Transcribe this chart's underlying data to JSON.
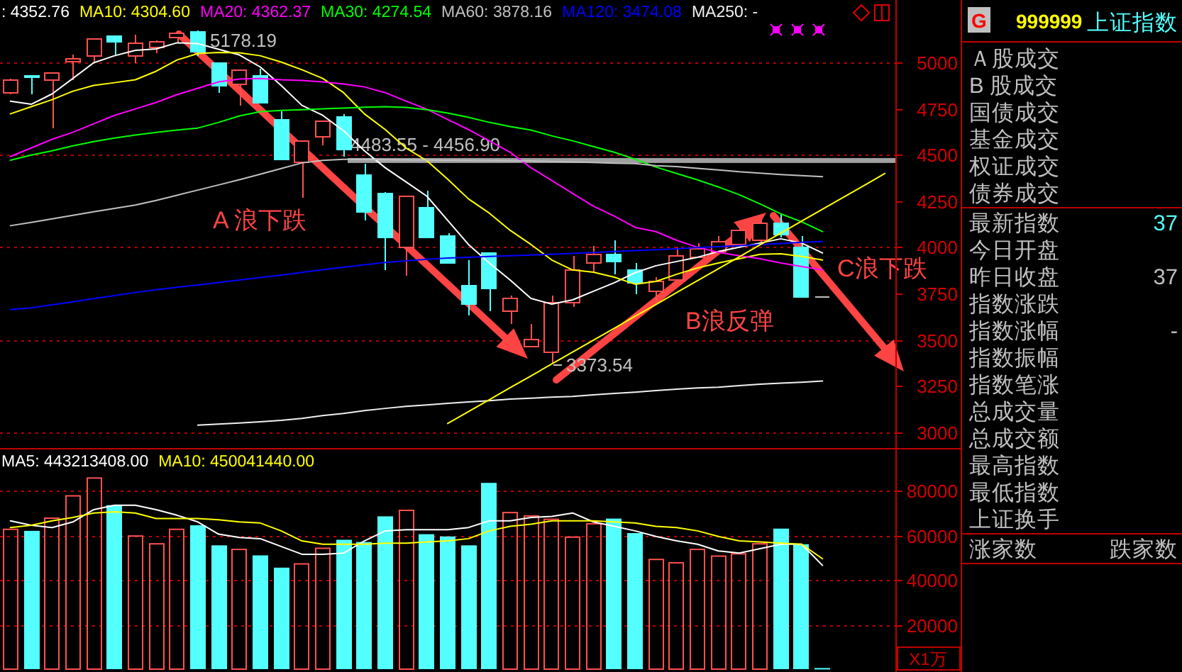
{
  "chart_data": [
    {
      "type": "candlestick",
      "categories": [
        null,
        null,
        null,
        null,
        null,
        null,
        null,
        null,
        null,
        null,
        null,
        null,
        null,
        null,
        null,
        null,
        null,
        null,
        null,
        null,
        null,
        null,
        null,
        null,
        null,
        null,
        null,
        null,
        null,
        null,
        null,
        null,
        null,
        null,
        null,
        null,
        null,
        null,
        null,
        null,
        null,
        null,
        null
      ],
      "ohlc": [
        [
          4838,
          4915,
          4830,
          4908
        ],
        [
          4931,
          4936,
          4833,
          4923
        ],
        [
          4910,
          4948,
          4652,
          4946
        ],
        [
          5010,
          5048,
          4908,
          5025
        ],
        [
          5038,
          5133,
          5005,
          5133
        ],
        [
          5146,
          5146,
          5044,
          5115
        ],
        [
          5044,
          5154,
          5005,
          5108
        ],
        [
          5090,
          5125,
          5052,
          5121
        ],
        [
          5138,
          5178.19,
          5108,
          5164
        ],
        [
          5170,
          5175,
          5038,
          5064
        ],
        [
          5005,
          5005,
          4844,
          4877
        ],
        [
          4885,
          4967,
          4775,
          4967
        ],
        [
          4936,
          4975,
          4787,
          4787
        ],
        [
          4692,
          4744,
          4479,
          4479
        ],
        [
          4467,
          4577,
          4275,
          4577
        ],
        [
          4600,
          4690,
          4556,
          4690
        ],
        [
          4710,
          4723,
          4492,
          4531
        ],
        [
          4398,
          4454,
          4146,
          4198
        ],
        [
          4292,
          4300,
          3882,
          4056
        ],
        [
          4005,
          4279,
          3852,
          4279
        ],
        [
          4218,
          4313,
          4056,
          4056
        ],
        [
          4062,
          4080,
          3921,
          3921
        ],
        [
          3792,
          3933,
          3633,
          3698
        ],
        [
          3975,
          3975,
          3659,
          3779
        ],
        [
          3654,
          3744,
          3587,
          3728
        ],
        [
          3467,
          3590,
          3467,
          3505
        ],
        [
          3433,
          3744,
          3373.54,
          3705
        ],
        [
          3702,
          3954,
          3680,
          3877
        ],
        [
          3921,
          4010,
          3864,
          3967
        ],
        [
          3962,
          4038,
          3856,
          3928
        ],
        [
          3877,
          3921,
          3748,
          3813
        ],
        [
          3762,
          3844,
          3705,
          3818
        ],
        [
          3825,
          4000,
          3825,
          3959
        ],
        [
          3946,
          4023,
          3946,
          3992
        ],
        [
          3979,
          4062,
          3979,
          4031
        ],
        [
          4018,
          4110,
          4000,
          4095
        ],
        [
          4044,
          4150,
          4030,
          4133
        ],
        [
          4133,
          4185,
          4060,
          4069
        ],
        [
          4000,
          4062,
          3731,
          3731
        ],
        [
          3731,
          3731,
          3731,
          3731
        ],
        null,
        null,
        null
      ],
      "colors": [
        "#ff5050",
        "#54ffff",
        "#ff5050",
        "#ff5050",
        "#ff5050",
        "#54ffff",
        "#ff5050",
        "#ff5050",
        "#ff5050",
        "#54ffff",
        "#54ffff",
        "#ff5050",
        "#54ffff",
        "#54ffff",
        "#ff5050",
        "#ff5050",
        "#54ffff",
        "#54ffff",
        "#54ffff",
        "#ff5050",
        "#54ffff",
        "#54ffff",
        "#54ffff",
        "#54ffff",
        "#ff5050",
        "#ff5050",
        "#ff5050",
        "#ff5050",
        "#ff5050",
        "#54ffff",
        "#54ffff",
        "#ff5050",
        "#ff5050",
        "#ff5050",
        "#ff5050",
        "#ff5050",
        "#ff5050",
        "#54ffff",
        "#54ffff",
        "#c0c0c0",
        null,
        null,
        null
      ],
      "series": [
        {
          "name": ": 4352.76",
          "type": "line",
          "color": "#ffffff",
          "values": [
            4792,
            4775,
            4831,
            4915,
            5000,
            5038,
            5067,
            5075,
            5108,
            5104,
            5073,
            5042,
            4977,
            4877,
            4769,
            4715,
            4631,
            4523,
            4431,
            4354,
            4277,
            4146,
            4015,
            3915,
            3823,
            3723,
            3692,
            3715,
            3762,
            3808,
            3862,
            3900,
            3923,
            3946,
            3977,
            4000,
            4023,
            4046,
            4023,
            3969,
            null,
            null,
            null
          ]
        },
        {
          "name": "MA10: 4304.60",
          "type": "line",
          "color": "#ffff00",
          "values": [
            4723,
            4762,
            4800,
            4846,
            4877,
            4892,
            4908,
            4954,
            5015,
            5050,
            5056,
            5054,
            5038,
            5004,
            4962,
            4915,
            4838,
            4723,
            4638,
            4538,
            4469,
            4369,
            4262,
            4185,
            4092,
            4015,
            3931,
            3877,
            3865,
            3838,
            3800,
            3815,
            3854,
            3888,
            3915,
            3938,
            3962,
            3965,
            3950,
            3931,
            null,
            null,
            null
          ]
        },
        {
          "name": "MA20: 4362.37",
          "type": "line",
          "color": "#ff00ff",
          "values": [
            4492,
            4538,
            4585,
            4623,
            4669,
            4715,
            4750,
            4785,
            4827,
            4862,
            4896,
            4912,
            4915,
            4908,
            4904,
            4896,
            4885,
            4869,
            4838,
            4792,
            4748,
            4692,
            4638,
            4577,
            4515,
            4431,
            4362,
            4292,
            4223,
            4169,
            4108,
            4085,
            4038,
            4000,
            3973,
            3954,
            3938,
            3915,
            3896,
            3877,
            null,
            null,
            null
          ]
        },
        {
          "name": "MA30: 4274.54",
          "type": "line",
          "color": "#00ff00",
          "values": [
            4472,
            4500,
            4523,
            4550,
            4573,
            4592,
            4608,
            4623,
            4635,
            4646,
            4677,
            4712,
            4735,
            4742,
            4746,
            4750,
            4754,
            4759,
            4762,
            4758,
            4746,
            4727,
            4704,
            4677,
            4654,
            4635,
            4604,
            4577,
            4546,
            4515,
            4477,
            4435,
            4400,
            4365,
            4327,
            4285,
            4235,
            4181,
            4138,
            4085,
            null,
            null,
            null
          ]
        },
        {
          "name": "MA60: 3878.16",
          "type": "line",
          "color": "#c0c0c0",
          "values": [
            4117,
            4135,
            4154,
            4173,
            4192,
            4211,
            4229,
            4254,
            4282,
            4310,
            4338,
            4366,
            4396,
            4427,
            4457,
            4471,
            4477,
            4477,
            4475,
            4474,
            4473,
            4472,
            4471,
            4470,
            4469,
            4468,
            4465,
            4462,
            4459,
            4456,
            4454,
            4442,
            4437,
            4428,
            4419,
            4409,
            4402,
            4394,
            4388,
            4383,
            null,
            null,
            null
          ]
        },
        {
          "name": "MA120: 3474.08",
          "type": "line",
          "color": "#0000ff",
          "values": [
            3662,
            3672,
            3688,
            3705,
            3722,
            3738,
            3755,
            3770,
            3783,
            3796,
            3809,
            3823,
            3836,
            3849,
            3864,
            3878,
            3892,
            3905,
            3918,
            3926,
            3935,
            3942,
            3946,
            3950,
            3954,
            3958,
            3962,
            3967,
            3972,
            3977,
            3982,
            3987,
            3992,
            3998,
            4003,
            4009,
            4015,
            4021,
            4027,
            4031,
            null,
            null,
            null
          ]
        },
        {
          "name": "MA250: -",
          "type": "line",
          "color": "#f0f0f0",
          "values": [
            null,
            null,
            null,
            null,
            null,
            null,
            null,
            null,
            null,
            3036,
            3042,
            3048,
            3054,
            3062,
            3073,
            3088,
            3100,
            3115,
            3127,
            3138,
            3146,
            3154,
            3162,
            3169,
            3177,
            3182,
            3188,
            3192,
            3200,
            3208,
            3215,
            3223,
            3231,
            3238,
            3242,
            3250,
            3258,
            3264,
            3269,
            3275,
            null,
            null,
            null
          ]
        },
        {
          "type": "line",
          "color": "#ffff00",
          "values": [
            null,
            null,
            null,
            null,
            null,
            null,
            null,
            null,
            null,
            null,
            null,
            null,
            null,
            null,
            null,
            null,
            null,
            null,
            null,
            null,
            null,
            3045,
            3110,
            3174,
            3239,
            3303,
            3368,
            3432,
            3497,
            3561,
            3626,
            3690,
            3755,
            3819,
            3884,
            3948,
            4013,
            4077,
            4142,
            4206,
            4271,
            4335,
            4400
          ]
        }
      ],
      "ylim": [
        2920,
        5340
      ],
      "yticks": [
        3000,
        3250,
        3500,
        3750,
        4000,
        4250,
        4500,
        4750,
        5000
      ],
      "tick_labels": "y",
      "legend": "top left",
      "ref_lines": [
        {
          "axis": "y",
          "value": 5000,
          "color": "#b40000",
          "line_style": "dotted"
        },
        {
          "axis": "y",
          "value": 4500,
          "color": "#b40000",
          "line_style": "dotted"
        },
        {
          "axis": "y",
          "value": 4000,
          "color": "#b40000",
          "line_style": "dotted"
        },
        {
          "axis": "y",
          "value": 3500,
          "color": "#b40000",
          "line_style": "dotted"
        },
        {
          "axis": "y",
          "value": 3000,
          "color": "#b40000",
          "line_style": "dotted"
        }
      ],
      "bands": [
        {
          "axis": "y",
          "from": 4456.9,
          "to": 4483.55,
          "label": "4483.55 - 4456.90",
          "color": "#a0a0a0"
        }
      ],
      "annotations": [
        "5178.19",
        "3373.54",
        "A 浪下跌",
        "B浪反弹",
        "C浪下跌"
      ]
    },
    {
      "type": "bar",
      "categories": [
        null,
        null,
        null,
        null,
        null,
        null,
        null,
        null,
        null,
        null,
        null,
        null,
        null,
        null,
        null,
        null,
        null,
        null,
        null,
        null,
        null,
        null,
        null,
        null,
        null,
        null,
        null,
        null,
        null,
        null,
        null,
        null,
        null,
        null,
        null,
        null,
        null,
        null,
        null,
        null,
        null,
        null,
        null
      ],
      "series": [
        {
          "colors": [
            "#ff5050",
            "#54ffff",
            "#ff5050",
            "#ff5050",
            "#ff5050",
            "#54ffff",
            "#ff5050",
            "#ff5050",
            "#ff5050",
            "#54ffff",
            "#54ffff",
            "#ff5050",
            "#54ffff",
            "#54ffff",
            "#ff5050",
            "#ff5050",
            "#54ffff",
            "#54ffff",
            "#54ffff",
            "#ff5050",
            "#54ffff",
            "#54ffff",
            "#54ffff",
            "#54ffff",
            "#ff5050",
            "#ff5050",
            "#ff5050",
            "#ff5050",
            "#ff5050",
            "#54ffff",
            "#54ffff",
            "#ff5050",
            "#ff5050",
            "#ff5050",
            "#ff5050",
            "#ff5050",
            "#ff5050",
            "#54ffff",
            "#54ffff",
            "#54ffff",
            null,
            null,
            null
          ],
          "values": [
            63000,
            62000,
            68000,
            78000,
            86000,
            73500,
            60000,
            56500,
            63000,
            64500,
            55500,
            54000,
            51000,
            45500,
            47500,
            54500,
            58000,
            57000,
            68500,
            71500,
            60500,
            59500,
            55500,
            83500,
            70500,
            69000,
            67500,
            59500,
            65500,
            67500,
            61000,
            49500,
            48000,
            54000,
            51000,
            52000,
            56500,
            63000,
            56000,
            500,
            null,
            null,
            null
          ]
        },
        {
          "name": "MA5: 443213408.00",
          "type": "line",
          "color": "#ffffff",
          "values": [
            66500,
            64500,
            63500,
            66000,
            71500,
            73500,
            73500,
            71500,
            69000,
            66000,
            60500,
            59000,
            58500,
            55000,
            51500,
            51500,
            52000,
            57500,
            62000,
            62500,
            62500,
            62500,
            63500,
            66500,
            66500,
            68000,
            68500,
            70000,
            66000,
            64000,
            62000,
            59500,
            57500,
            56000,
            53000,
            52000,
            54000,
            56000,
            56000,
            46500,
            null,
            null,
            null
          ]
        },
        {
          "name": "MA10: 450041440.00",
          "type": "line",
          "color": "#ffff00",
          "values": [
            63500,
            64500,
            66500,
            68000,
            70000,
            70500,
            70000,
            67500,
            67500,
            67500,
            67000,
            66000,
            65500,
            62000,
            57500,
            56000,
            56000,
            56000,
            56500,
            56500,
            57000,
            57500,
            58500,
            62000,
            64000,
            65000,
            66500,
            66500,
            66500,
            66000,
            65500,
            64000,
            63500,
            62000,
            59500,
            57500,
            57000,
            56500,
            56000,
            49500,
            null,
            null,
            null
          ]
        }
      ],
      "ylim": [
        0,
        98500
      ],
      "yticks": [
        20000,
        40000,
        60000,
        80000
      ],
      "grid": "y",
      "ylabel": "X1万",
      "legend": "top left",
      "tick_labels": "y"
    },
    {
      "type": "other",
      "title": "999999",
      "subtitle": "上证指数",
      "annotations": [
        "G"
      ],
      "categories": [
        "Ａ股成交",
        "B 股成交",
        "国债成交",
        "基金成交",
        "权证成交",
        "债券成交",
        "最新指数",
        "今日开盘",
        "昨日收盘",
        "指数涨跌",
        "指数涨幅",
        "指数振幅",
        "指数笔涨",
        "总成交量",
        "总成交额",
        "最高指数",
        "最低指数",
        "上证换手",
        "涨家数"
      ],
      "value_labels": [
        null,
        null,
        null,
        null,
        null,
        null,
        "37",
        null,
        "37",
        null,
        "-",
        null,
        null,
        null,
        null,
        null,
        null,
        null,
        "跌家数"
      ],
      "colors": [
        null,
        null,
        null,
        null,
        null,
        null,
        "#54ffff",
        null,
        "#c0c0c0",
        null,
        "#c0c0c0",
        null,
        null,
        null,
        null,
        null,
        null,
        null,
        "#c0c0c0"
      ]
    }
  ]
}
